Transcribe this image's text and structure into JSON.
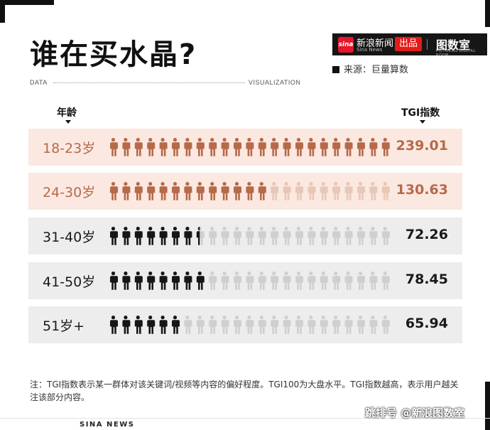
{
  "header": {
    "title": "谁在买水晶?",
    "brand_name": "新浪新闻",
    "brand_en": "Sina News",
    "brand_logo": "sina",
    "brand_out": "出品",
    "brand_lab": "图数室",
    "brand_lab_en": "PICTORIAL DIGITAL ROOM",
    "source": "来源：巨量算数",
    "data_word": "DATA",
    "viz_word": "VISUALIZATION"
  },
  "chart_data": {
    "type": "pictogram",
    "x_header": "年龄",
    "y_header": "TGI指数",
    "icons_total": 23,
    "colors": {
      "active_warm": "#b56a4a",
      "faded_warm": "#e8c7b8",
      "active_dark": "#161616",
      "faded_gray": "#cfcfcf",
      "row_bg_warm": "#fbe8e1",
      "row_bg_gray": "#ededed"
    },
    "rows": [
      {
        "label": "18-23岁",
        "value": "239.01",
        "filled": 23,
        "style": "warm"
      },
      {
        "label": "24-30岁",
        "value": "130.63",
        "filled": 13,
        "style": "warm"
      },
      {
        "label": "31-40岁",
        "value": "72.26",
        "filled": 7.5,
        "style": "gray"
      },
      {
        "label": "41-50岁",
        "value": "78.45",
        "filled": 8,
        "style": "gray"
      },
      {
        "label": "51岁+",
        "value": "65.94",
        "filled": 6,
        "style": "gray"
      }
    ]
  },
  "note": "注：TGI指数表示某一群体对该关键词/视频等内容的偏好程度。TGI100为大盘水平。TGI指数越高，表示用户越关注该部分内容。",
  "footer": {
    "brand": "SINA NEWS",
    "watermark": "跳排号 @新浪图数室"
  }
}
